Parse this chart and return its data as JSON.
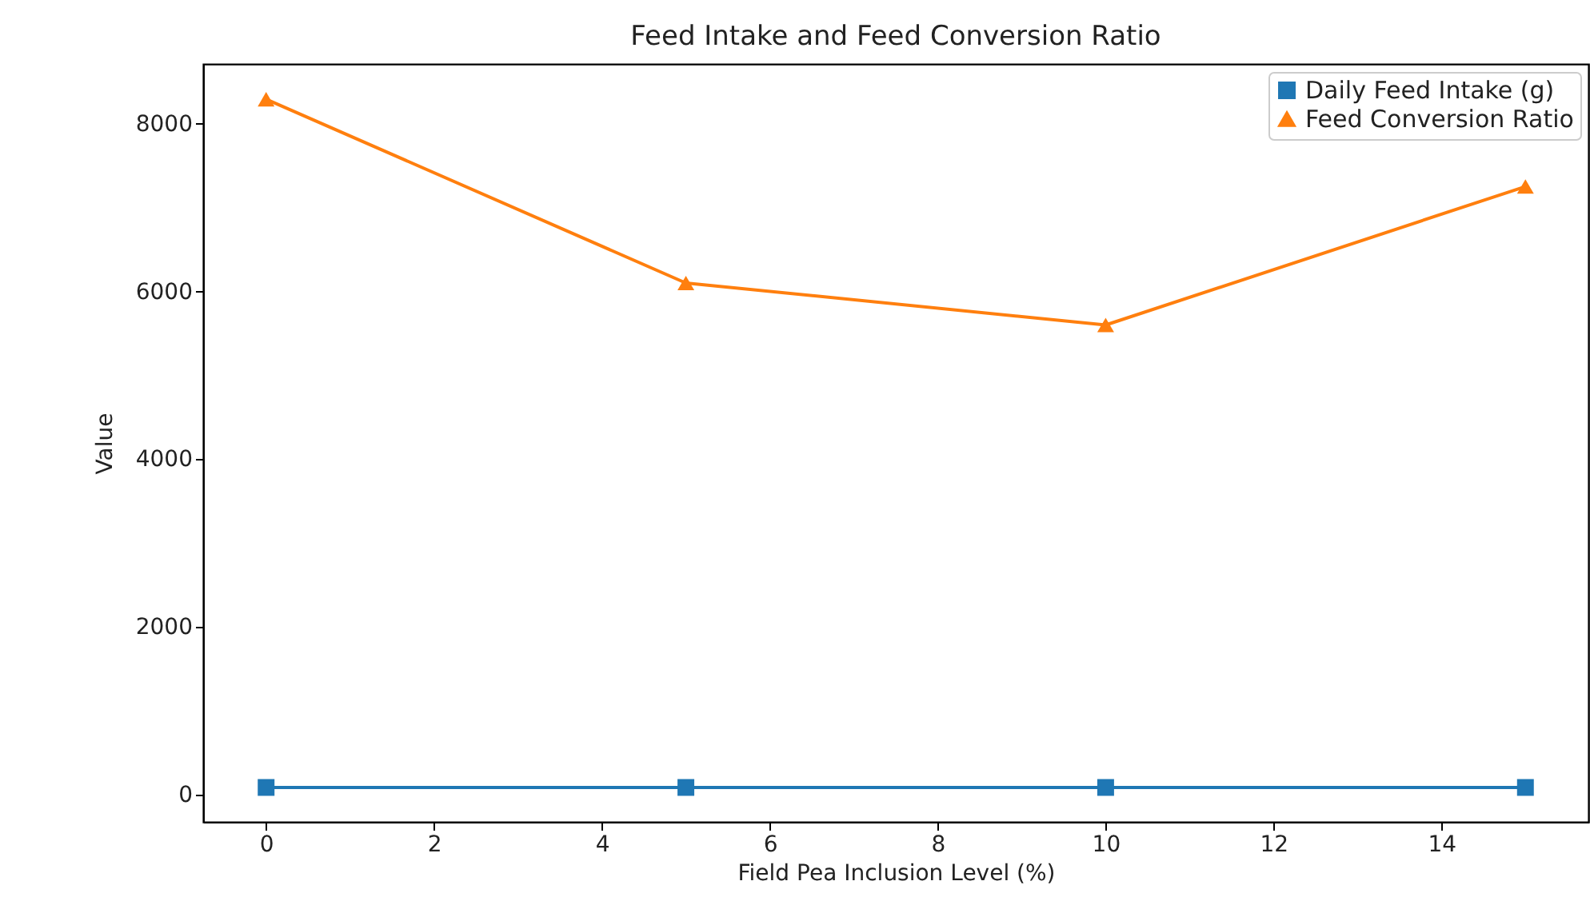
{
  "chart_data": {
    "type": "line",
    "title": "Feed Intake and Feed Conversion Ratio",
    "xlabel": "Field Pea Inclusion Level (%)",
    "ylabel": "Value",
    "x": [
      0,
      5,
      10,
      15
    ],
    "series": [
      {
        "name": "Daily Feed Intake (g)",
        "color": "#1f77b4",
        "marker": "square",
        "values": [
          90,
          90,
          90,
          90
        ]
      },
      {
        "name": "Feed Conversion Ratio",
        "color": "#ff7f0e",
        "marker": "triangle",
        "values": [
          8290,
          6100,
          5600,
          7250
        ]
      }
    ],
    "xlim": [
      -0.75,
      15.75
    ],
    "xticks": [
      0,
      2,
      4,
      6,
      8,
      10,
      12,
      14
    ],
    "ylim": [
      -320,
      8710
    ],
    "yticks": [
      0,
      2000,
      4000,
      6000,
      8000
    ],
    "grid": false,
    "legend": "top right",
    "line_style": "solid"
  }
}
